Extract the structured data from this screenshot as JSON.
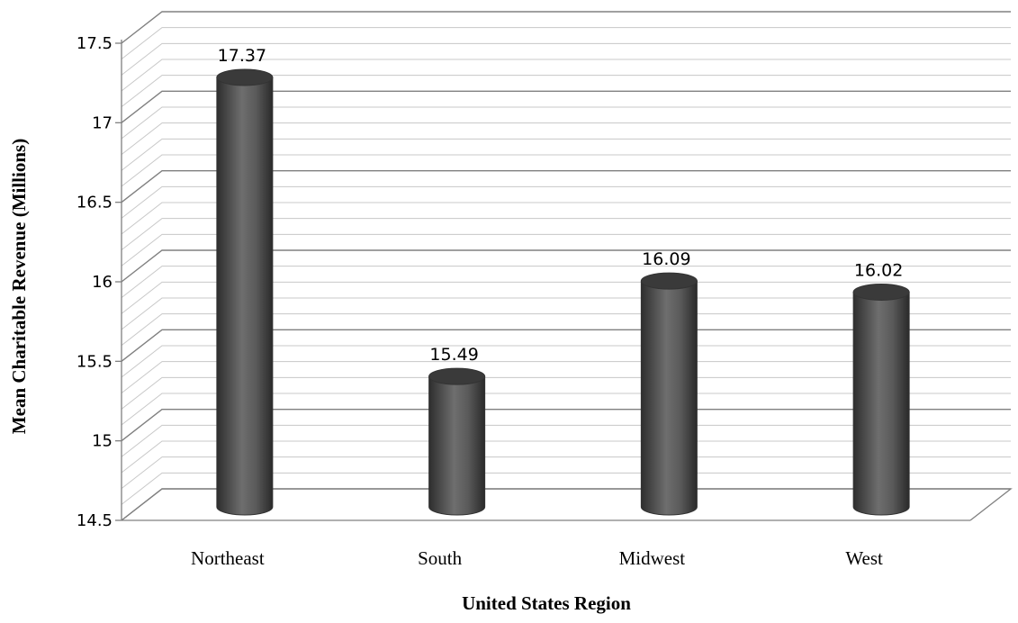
{
  "chart_data": {
    "type": "bar",
    "style": "3d-cylinder",
    "title": "",
    "xlabel": "United States Region",
    "ylabel": "Mean Charitable Revenue (Millions)",
    "categories": [
      "Northeast",
      "South",
      "Midwest",
      "West"
    ],
    "values": [
      17.37,
      15.49,
      16.09,
      16.02
    ],
    "value_labels": [
      "17.37",
      "15.49",
      "16.09",
      "16.02"
    ],
    "ylim": [
      14.5,
      17.5
    ],
    "yticks": [
      "14.5",
      "15",
      "15.5",
      "16",
      "16.5",
      "17",
      "17.5"
    ],
    "grid": true,
    "legend": "none",
    "colors": {
      "bar": "#5a5a5a",
      "bar_dark": "#2e2e2e",
      "bar_light": "#7a7a7a",
      "grid_major": "#808080",
      "grid_minor": "#c8c8c8"
    }
  }
}
